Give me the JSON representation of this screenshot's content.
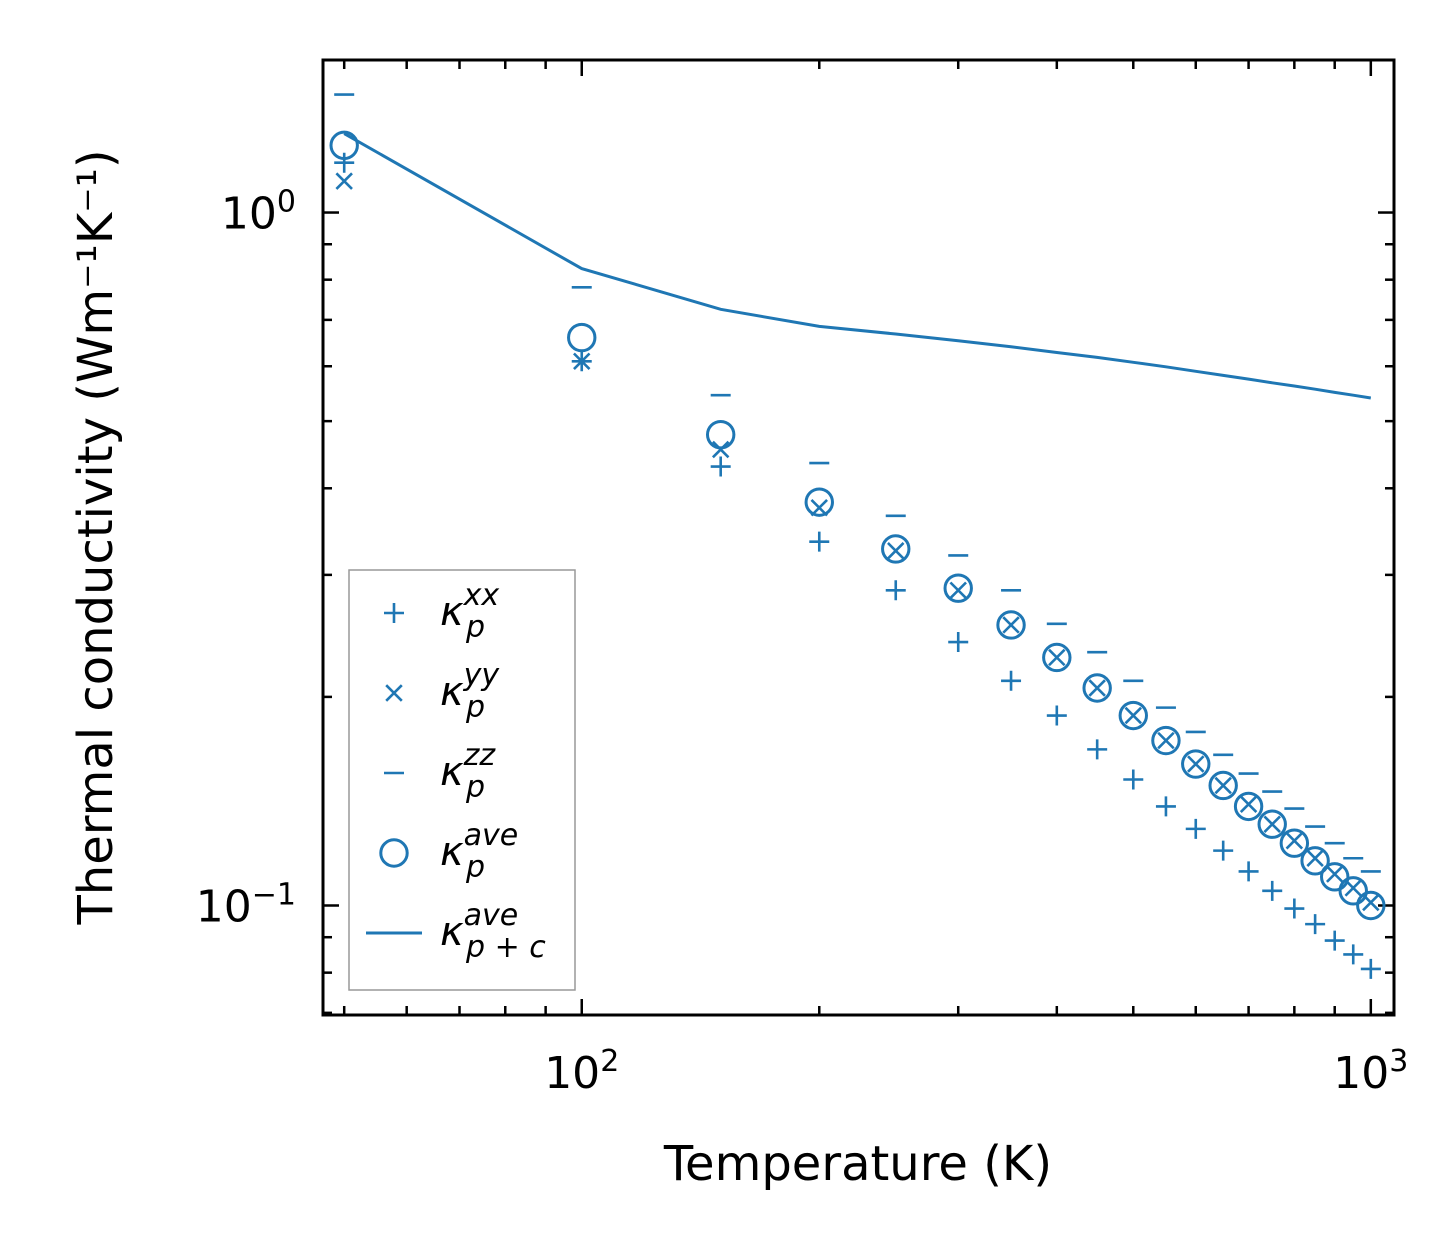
{
  "chart_data": {
    "type": "scatter",
    "title": "",
    "xlabel": "Temperature (K)",
    "ylabel": "Thermal conductivity (Wm⁻¹K⁻¹)",
    "xscale": "log",
    "yscale": "log",
    "xlim": [
      47,
      1070
    ],
    "ylim": [
      0.0695,
      1.66
    ],
    "x_ticks": [
      {
        "value": 100,
        "base": "10",
        "exp": "2"
      },
      {
        "value": 1000,
        "base": "10",
        "exp": "3"
      }
    ],
    "y_ticks": [
      {
        "value": 1.0,
        "base": "10",
        "exp": "0"
      },
      {
        "value": 0.1,
        "base": "10",
        "exp": "−1"
      }
    ],
    "color": "#1f77b4",
    "legend_position": "lower left",
    "x": [
      50,
      100,
      150,
      200,
      250,
      300,
      350,
      400,
      450,
      500,
      550,
      600,
      650,
      700,
      750,
      800,
      850,
      900,
      950,
      1000
    ],
    "series": [
      {
        "name": "xx",
        "marker": "plus",
        "legend": {
          "base": "κ",
          "sub": "p",
          "sup": "xx"
        },
        "values": [
          1.18,
          0.61,
          0.43,
          0.335,
          0.285,
          0.24,
          0.211,
          0.188,
          0.168,
          0.152,
          0.139,
          0.129,
          0.12,
          0.112,
          0.105,
          0.099,
          0.094,
          0.089,
          0.085,
          0.081
        ]
      },
      {
        "name": "yy",
        "marker": "x",
        "legend": {
          "base": "κ",
          "sub": "p",
          "sup": "yy"
        },
        "values": [
          1.11,
          0.61,
          0.455,
          0.375,
          0.325,
          0.285,
          0.254,
          0.228,
          0.206,
          0.188,
          0.173,
          0.16,
          0.149,
          0.14,
          0.131,
          0.124,
          0.117,
          0.111,
          0.106,
          0.101
        ]
      },
      {
        "name": "zz",
        "marker": "hline",
        "legend": {
          "base": "κ",
          "sub": "p",
          "sup": "zz"
        },
        "values": [
          1.48,
          0.78,
          0.545,
          0.435,
          0.365,
          0.32,
          0.285,
          0.255,
          0.232,
          0.211,
          0.193,
          0.178,
          0.165,
          0.155,
          0.146,
          0.138,
          0.13,
          0.123,
          0.117,
          0.112
        ]
      },
      {
        "name": "ave",
        "marker": "circle",
        "legend": {
          "base": "κ",
          "sub": "p",
          "sup": "ave"
        },
        "values": [
          1.25,
          0.66,
          0.478,
          0.382,
          0.327,
          0.287,
          0.254,
          0.228,
          0.206,
          0.188,
          0.173,
          0.16,
          0.149,
          0.139,
          0.131,
          0.123,
          0.116,
          0.11,
          0.105,
          0.1
        ]
      },
      {
        "name": "ave p+c",
        "marker": "line",
        "legend": {
          "base": "κ",
          "sub": "p + c",
          "sup": "ave"
        },
        "values": [
          1.3,
          0.83,
          0.725,
          0.685,
          0.668,
          0.653,
          0.64,
          0.628,
          0.618,
          0.608,
          0.599,
          0.59,
          0.582,
          0.575,
          0.568,
          0.562,
          0.556,
          0.55,
          0.545,
          0.54
        ]
      }
    ]
  }
}
